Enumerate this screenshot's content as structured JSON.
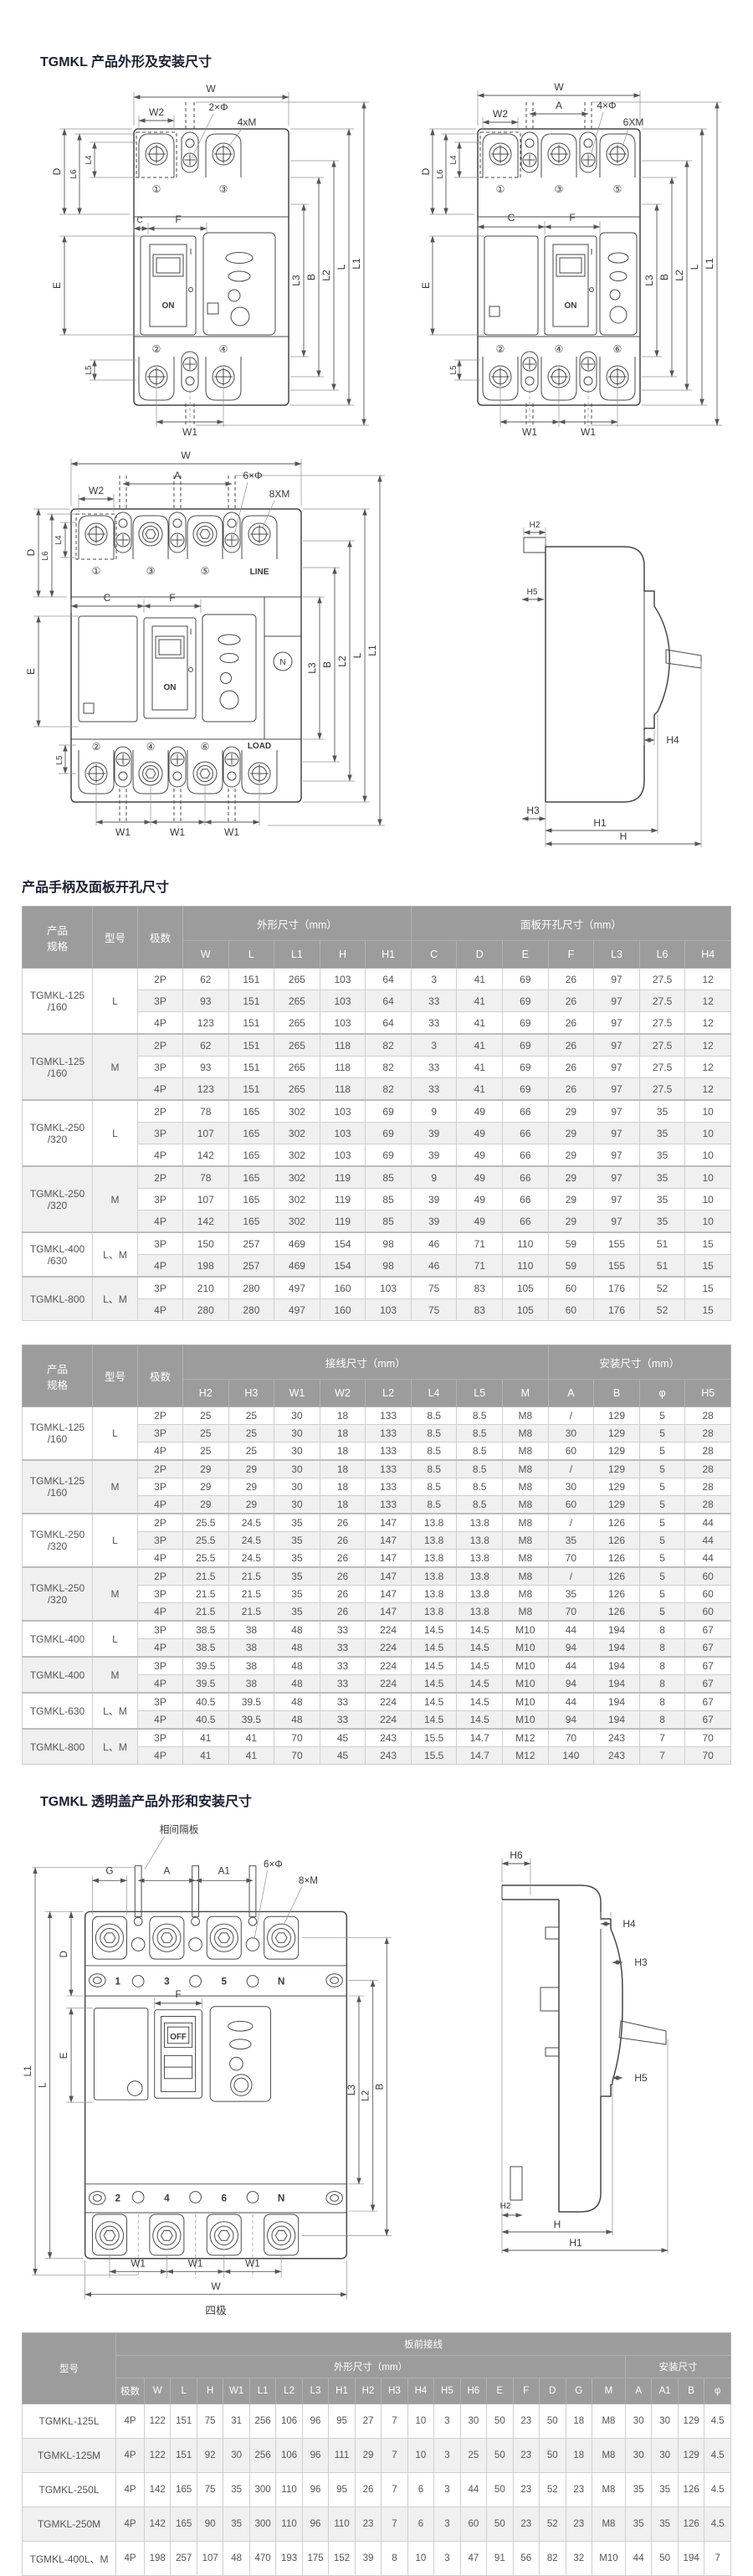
{
  "page": {
    "section1_title": "TGMKL 产品外形及安装尺寸",
    "section2_title": "产品手柄及面板开孔尺寸",
    "section3_title": "TGMKL 透明盖产品外形和安装尺寸"
  },
  "labels": {
    "w": "W",
    "w1": "W1",
    "w2": "W2",
    "a": "A",
    "a1": "A1",
    "g": "G",
    "b": "B",
    "c": "C",
    "d": "D",
    "e": "E",
    "f": "F",
    "l": "L",
    "l1": "L1",
    "l2": "L2",
    "l3": "L3",
    "l4": "L4",
    "l5": "L5",
    "l6": "L6",
    "h": "H",
    "h1": "H1",
    "h2": "H2",
    "h3": "H3",
    "h4": "H4",
    "h5": "H5",
    "h6": "H6",
    "phi2": "2×Φ",
    "m4x": "4xM",
    "phi4": "4×Φ",
    "m6x": "6XM",
    "phi6": "6×Φ",
    "m8x": "8XM",
    "m8x2": "8×M",
    "on": "ON",
    "off": "OFF",
    "i": "I",
    "line": "LINE",
    "load": "LOAD",
    "n": "N",
    "t1": "①",
    "t2": "②",
    "t3": "③",
    "t4": "④",
    "t5": "⑤",
    "t6": "⑥",
    "p1": "1",
    "p2": "2",
    "p3": "3",
    "p4": "4",
    "p5": "5",
    "p6": "6",
    "divider": "相间隔板",
    "four_pole": "四极"
  },
  "table1": {
    "col_spec": "产品\n规格",
    "col_model": "型号",
    "col_pole": "极数",
    "group1": {
      "label": "外形尺寸（mm）",
      "cols": [
        "W",
        "L",
        "L1",
        "H",
        "H1"
      ]
    },
    "group2": {
      "label": "面板开孔尺寸（mm）",
      "cols": [
        "C",
        "D",
        "E",
        "F",
        "L3",
        "L6",
        "H4"
      ]
    },
    "groups": [
      {
        "spec": "TGMKL-125\n/160",
        "model": "L",
        "rows": [
          [
            "2P",
            "62",
            "151",
            "265",
            "103",
            "64",
            "3",
            "41",
            "69",
            "26",
            "97",
            "27.5",
            "12"
          ],
          [
            "3P",
            "93",
            "151",
            "265",
            "103",
            "64",
            "33",
            "41",
            "69",
            "26",
            "97",
            "27.5",
            "12"
          ],
          [
            "4P",
            "123",
            "151",
            "265",
            "103",
            "64",
            "33",
            "41",
            "69",
            "26",
            "97",
            "27.5",
            "12"
          ]
        ]
      },
      {
        "spec": "TGMKL-125\n/160",
        "model": "M",
        "rows": [
          [
            "2P",
            "62",
            "151",
            "265",
            "118",
            "82",
            "3",
            "41",
            "69",
            "26",
            "97",
            "27.5",
            "12"
          ],
          [
            "3P",
            "93",
            "151",
            "265",
            "118",
            "82",
            "33",
            "41",
            "69",
            "26",
            "97",
            "27.5",
            "12"
          ],
          [
            "4P",
            "123",
            "151",
            "265",
            "118",
            "82",
            "33",
            "41",
            "69",
            "26",
            "97",
            "27.5",
            "12"
          ]
        ]
      },
      {
        "spec": "TGMKL-250\n/320",
        "model": "L",
        "rows": [
          [
            "2P",
            "78",
            "165",
            "302",
            "103",
            "69",
            "9",
            "49",
            "66",
            "29",
            "97",
            "35",
            "10"
          ],
          [
            "3P",
            "107",
            "165",
            "302",
            "103",
            "69",
            "39",
            "49",
            "66",
            "29",
            "97",
            "35",
            "10"
          ],
          [
            "4P",
            "142",
            "165",
            "302",
            "103",
            "69",
            "39",
            "49",
            "66",
            "29",
            "97",
            "35",
            "10"
          ]
        ]
      },
      {
        "spec": "TGMKL-250\n/320",
        "model": "M",
        "rows": [
          [
            "2P",
            "78",
            "165",
            "302",
            "119",
            "85",
            "9",
            "49",
            "66",
            "29",
            "97",
            "35",
            "10"
          ],
          [
            "3P",
            "107",
            "165",
            "302",
            "119",
            "85",
            "39",
            "49",
            "66",
            "29",
            "97",
            "35",
            "10"
          ],
          [
            "4P",
            "142",
            "165",
            "302",
            "119",
            "85",
            "39",
            "49",
            "66",
            "29",
            "97",
            "35",
            "10"
          ]
        ]
      },
      {
        "spec": "TGMKL-400\n/630",
        "model": "L、M",
        "rows": [
          [
            "3P",
            "150",
            "257",
            "469",
            "154",
            "98",
            "46",
            "71",
            "110",
            "59",
            "155",
            "51",
            "15"
          ],
          [
            "4P",
            "198",
            "257",
            "469",
            "154",
            "98",
            "46",
            "71",
            "110",
            "59",
            "155",
            "51",
            "15"
          ]
        ]
      },
      {
        "spec": "TGMKL-800",
        "model": "L、M",
        "rows": [
          [
            "3P",
            "210",
            "280",
            "497",
            "160",
            "103",
            "75",
            "83",
            "105",
            "60",
            "176",
            "52",
            "15"
          ],
          [
            "4P",
            "280",
            "280",
            "497",
            "160",
            "103",
            "75",
            "83",
            "105",
            "60",
            "176",
            "52",
            "15"
          ]
        ]
      }
    ]
  },
  "table2": {
    "col_spec": "产品\n规格",
    "col_model": "型号",
    "col_pole": "极数",
    "group1": {
      "label": "接线尺寸（mm）",
      "cols": [
        "H2",
        "H3",
        "W1",
        "W2",
        "L2",
        "L4",
        "L5",
        "M"
      ]
    },
    "group2": {
      "label": "安装尺寸（mm）",
      "cols": [
        "A",
        "B",
        "φ",
        "H5"
      ]
    },
    "groups": [
      {
        "spec": "TGMKL-125\n/160",
        "model": "L",
        "rows": [
          [
            "2P",
            "25",
            "25",
            "30",
            "18",
            "133",
            "8.5",
            "8.5",
            "M8",
            "/",
            "129",
            "5",
            "28"
          ],
          [
            "3P",
            "25",
            "25",
            "30",
            "18",
            "133",
            "8.5",
            "8.5",
            "M8",
            "30",
            "129",
            "5",
            "28"
          ],
          [
            "4P",
            "25",
            "25",
            "30",
            "18",
            "133",
            "8.5",
            "8.5",
            "M8",
            "60",
            "129",
            "5",
            "28"
          ]
        ]
      },
      {
        "spec": "TGMKL-125\n/160",
        "model": "M",
        "rows": [
          [
            "2P",
            "29",
            "29",
            "30",
            "18",
            "133",
            "8.5",
            "8.5",
            "M8",
            "/",
            "129",
            "5",
            "28"
          ],
          [
            "3P",
            "29",
            "29",
            "30",
            "18",
            "133",
            "8.5",
            "8.5",
            "M8",
            "30",
            "129",
            "5",
            "28"
          ],
          [
            "4P",
            "29",
            "29",
            "30",
            "18",
            "133",
            "8.5",
            "8.5",
            "M8",
            "60",
            "129",
            "5",
            "28"
          ]
        ]
      },
      {
        "spec": "TGMKL-250\n/320",
        "model": "L",
        "rows": [
          [
            "2P",
            "25.5",
            "24.5",
            "35",
            "26",
            "147",
            "13.8",
            "13.8",
            "M8",
            "/",
            "126",
            "5",
            "44"
          ],
          [
            "3P",
            "25.5",
            "24.5",
            "35",
            "26",
            "147",
            "13.8",
            "13.8",
            "M8",
            "35",
            "126",
            "5",
            "44"
          ],
          [
            "4P",
            "25.5",
            "24.5",
            "35",
            "26",
            "147",
            "13.8",
            "13.8",
            "M8",
            "70",
            "126",
            "5",
            "44"
          ]
        ]
      },
      {
        "spec": "TGMKL-250\n/320",
        "model": "M",
        "rows": [
          [
            "2P",
            "21.5",
            "21.5",
            "35",
            "26",
            "147",
            "13.8",
            "13.8",
            "M8",
            "/",
            "126",
            "5",
            "60"
          ],
          [
            "3P",
            "21.5",
            "21.5",
            "35",
            "26",
            "147",
            "13.8",
            "13.8",
            "M8",
            "35",
            "126",
            "5",
            "60"
          ],
          [
            "4P",
            "21.5",
            "21.5",
            "35",
            "26",
            "147",
            "13.8",
            "13.8",
            "M8",
            "70",
            "126",
            "5",
            "60"
          ]
        ]
      },
      {
        "spec": "TGMKL-400",
        "model": "L",
        "rows": [
          [
            "3P",
            "38.5",
            "38",
            "48",
            "33",
            "224",
            "14.5",
            "14.5",
            "M10",
            "44",
            "194",
            "8",
            "67"
          ],
          [
            "4P",
            "38.5",
            "38",
            "48",
            "33",
            "224",
            "14.5",
            "14.5",
            "M10",
            "94",
            "194",
            "8",
            "67"
          ]
        ]
      },
      {
        "spec": "TGMKL-400",
        "model": "M",
        "rows": [
          [
            "3P",
            "39.5",
            "38",
            "48",
            "33",
            "224",
            "14.5",
            "14.5",
            "M10",
            "44",
            "194",
            "8",
            "67"
          ],
          [
            "4P",
            "39.5",
            "38",
            "48",
            "33",
            "224",
            "14.5",
            "14.5",
            "M10",
            "94",
            "194",
            "8",
            "67"
          ]
        ]
      },
      {
        "spec": "TGMKL-630",
        "model": "L、M",
        "rows": [
          [
            "3P",
            "40.5",
            "39.5",
            "48",
            "33",
            "224",
            "14.5",
            "14.5",
            "M10",
            "44",
            "194",
            "8",
            "67"
          ],
          [
            "4P",
            "40.5",
            "39.5",
            "48",
            "33",
            "224",
            "14.5",
            "14.5",
            "M10",
            "94",
            "194",
            "8",
            "67"
          ]
        ]
      },
      {
        "spec": "TGMKL-800",
        "model": "L、M",
        "rows": [
          [
            "3P",
            "41",
            "41",
            "70",
            "45",
            "243",
            "15.5",
            "14.7",
            "M12",
            "70",
            "243",
            "7",
            "70"
          ],
          [
            "4P",
            "41",
            "41",
            "70",
            "45",
            "243",
            "15.5",
            "14.7",
            "M12",
            "140",
            "243",
            "7",
            "70"
          ]
        ]
      }
    ]
  },
  "table3": {
    "col_model": "型号",
    "top_group": "板前接线",
    "group1": {
      "label": "外形尺寸（mm）",
      "cols": [
        "极数",
        "W",
        "L",
        "H",
        "W1",
        "L1",
        "L2",
        "L3",
        "H1",
        "H2",
        "H3",
        "H4",
        "H5",
        "H6",
        "E",
        "F",
        "D",
        "G",
        "M"
      ]
    },
    "group2": {
      "label": "安装尺寸",
      "cols": [
        "A",
        "A1",
        "B",
        "φ"
      ]
    },
    "rows": [
      [
        "TGMKL-125L",
        "4P",
        "122",
        "151",
        "75",
        "31",
        "256",
        "106",
        "96",
        "95",
        "27",
        "7",
        "10",
        "3",
        "30",
        "50",
        "23",
        "50",
        "18",
        "M8",
        "30",
        "30",
        "129",
        "4.5"
      ],
      [
        "TGMKL-125M",
        "4P",
        "122",
        "151",
        "92",
        "30",
        "256",
        "106",
        "96",
        "111",
        "29",
        "7",
        "10",
        "3",
        "25",
        "50",
        "23",
        "50",
        "18",
        "M8",
        "30",
        "30",
        "129",
        "4.5"
      ],
      [
        "TGMKL-250L",
        "4P",
        "142",
        "165",
        "75",
        "35",
        "300",
        "110",
        "96",
        "95",
        "26",
        "7",
        "6",
        "3",
        "44",
        "50",
        "23",
        "52",
        "23",
        "M8",
        "35",
        "35",
        "126",
        "4.5"
      ],
      [
        "TGMKL-250M",
        "4P",
        "142",
        "165",
        "90",
        "35",
        "300",
        "110",
        "96",
        "110",
        "23",
        "7",
        "6",
        "3",
        "60",
        "50",
        "23",
        "52",
        "23",
        "M8",
        "35",
        "35",
        "126",
        "4.5"
      ],
      [
        "TGMKL-400L、M",
        "4P",
        "198",
        "257",
        "107",
        "48",
        "470",
        "193",
        "175",
        "152",
        "39",
        "8",
        "10",
        "3",
        "47",
        "91",
        "56",
        "82",
        "32",
        "M10",
        "44",
        "50",
        "194",
        "7"
      ]
    ]
  }
}
